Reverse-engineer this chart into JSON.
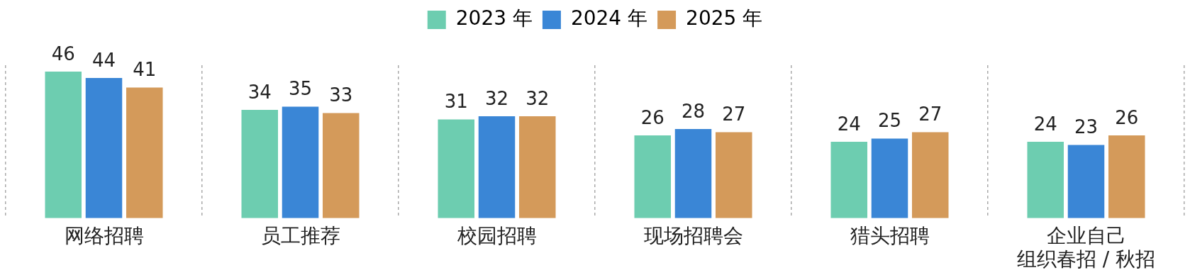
{
  "chart_data": {
    "type": "bar",
    "categories": [
      "网络招聘",
      "员工推荐",
      "校园招聘",
      "现场招聘会",
      "猎头招聘",
      "企业自己组织春招 / 秋招"
    ],
    "series": [
      {
        "name": "2023 年",
        "color": "#6dcdb0",
        "values": [
          46,
          34,
          31,
          26,
          24,
          24
        ]
      },
      {
        "name": "2024 年",
        "color": "#3a86d6",
        "values": [
          44,
          35,
          32,
          28,
          25,
          23
        ]
      },
      {
        "name": "2025 年",
        "color": "#d49a5a",
        "values": [
          41,
          33,
          32,
          27,
          27,
          26
        ]
      }
    ],
    "ylim": [
      0,
      48
    ],
    "data_labels": true,
    "legend": "top",
    "grid": "x",
    "tick_labels": "x"
  }
}
